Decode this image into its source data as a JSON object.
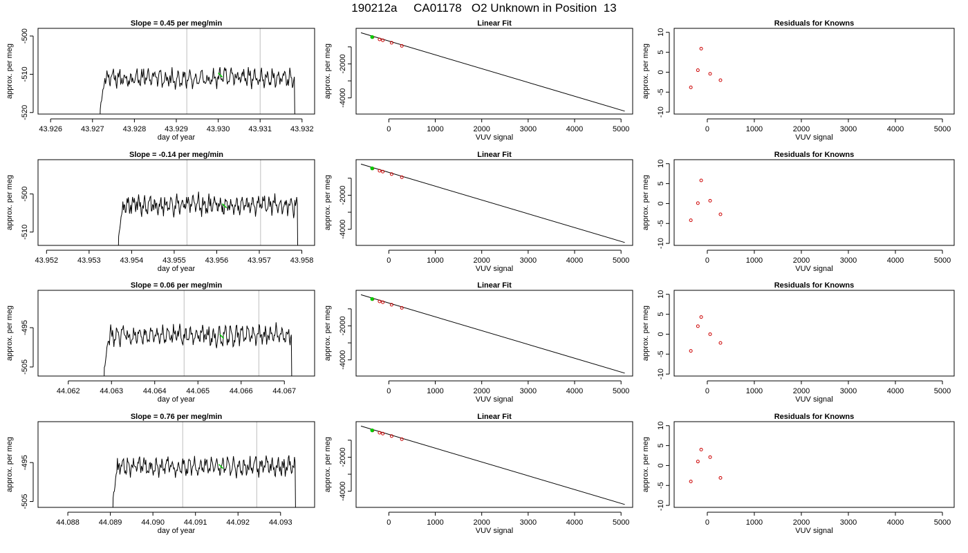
{
  "title": "190212a     CA01178   O2 Unknown in Position  13",
  "colors": {
    "trace": "#000000",
    "marker": "#00cc00",
    "residual": "#cc0000",
    "vline": "#bebebe"
  },
  "chart_data": [
    {
      "type": "line",
      "row": 1,
      "title": "Slope =  0.45  per meg/min",
      "xlabel": "day of year",
      "ylabel": "approx. per meg",
      "xlim": [
        43.9257,
        43.9323
      ],
      "ylim": [
        -520.4,
        -498.0
      ],
      "xticks": [
        43.926,
        43.927,
        43.928,
        43.929,
        43.93,
        43.931,
        43.932
      ],
      "xtick_labels": [
        "43.926",
        "43.927",
        "43.928",
        "43.929",
        "43.930",
        "43.931",
        "43.932"
      ],
      "yticks": [
        -520,
        -510,
        -500
      ],
      "ytick_labels": [
        "-520",
        "-510",
        "-500"
      ],
      "vlines": [
        43.92925,
        43.931
      ],
      "x_start": 43.92717,
      "x_end": 43.93188,
      "level": -511.0,
      "noise": 1.8,
      "marker": {
        "x": 43.93005,
        "y": -510.2
      }
    },
    {
      "type": "scatter_line",
      "row": 1,
      "title": "Linear Fit",
      "xlabel": "VUV signal",
      "ylabel": "approx. per meg",
      "xlim": [
        -705,
        5250
      ],
      "ylim": [
        -4950,
        90
      ],
      "xticks": [
        0,
        1000,
        2000,
        3000,
        4000,
        5000
      ],
      "xtick_labels": [
        "0",
        "1000",
        "2000",
        "3000",
        "4000",
        "5000"
      ],
      "yticks": [
        -4000,
        -3000,
        -2000,
        -1000
      ],
      "ytick_labels": [
        "-4000",
        "",
        "-2000",
        ""
      ],
      "fit_line": {
        "x": [
          -600,
          5080
        ],
        "y": [
          -170,
          -4780
        ]
      },
      "points": {
        "x": [
          -350,
          -200,
          -130,
          60,
          280
        ],
        "y": [
          -430,
          -560,
          -610,
          -760,
          -940
        ]
      },
      "marker": {
        "x": -360,
        "y": -420
      }
    },
    {
      "type": "scatter",
      "row": 1,
      "title": "Residuals for Knowns",
      "xlabel": "VUV signal",
      "ylabel": "approx. per meg",
      "xlim": [
        -705,
        5250
      ],
      "ylim": [
        -10.5,
        11
      ],
      "xticks": [
        0,
        1000,
        2000,
        3000,
        4000,
        5000
      ],
      "xtick_labels": [
        "0",
        "1000",
        "2000",
        "3000",
        "4000",
        "5000"
      ],
      "yticks": [
        -10,
        -5,
        0,
        5,
        10
      ],
      "ytick_labels": [
        "-10",
        "-5",
        "0",
        "5",
        "10"
      ],
      "points": {
        "x": [
          -350,
          -200,
          -130,
          60,
          280
        ],
        "y": [
          -3.8,
          0.5,
          5.9,
          -0.4,
          -2.0
        ]
      }
    },
    {
      "type": "line",
      "row": 2,
      "title": "Slope =  -0.14  per meg/min",
      "xlabel": "day of year",
      "ylabel": "approx. per meg",
      "xlim": [
        43.9518,
        43.9583
      ],
      "ylim": [
        -513.5,
        -491.0
      ],
      "xticks": [
        43.952,
        43.953,
        43.954,
        43.955,
        43.956,
        43.957,
        43.958
      ],
      "xtick_labels": [
        "43.952",
        "43.953",
        "43.954",
        "43.955",
        "43.956",
        "43.957",
        "43.958"
      ],
      "yticks": [
        -510,
        -500
      ],
      "ytick_labels": [
        "-510",
        "-500"
      ],
      "vlines": [
        43.9553,
        43.95703
      ],
      "x_start": 43.95368,
      "x_end": 43.95795,
      "level": -503.0,
      "noise": 1.8,
      "marker": {
        "x": 43.95618,
        "y": -503.1
      }
    },
    {
      "type": "scatter_line",
      "row": 2,
      "title": "Linear Fit",
      "xlabel": "VUV signal",
      "ylabel": "approx. per meg",
      "xlim": [
        -705,
        5250
      ],
      "ylim": [
        -4950,
        90
      ],
      "xticks": [
        0,
        1000,
        2000,
        3000,
        4000,
        5000
      ],
      "xtick_labels": [
        "0",
        "1000",
        "2000",
        "3000",
        "4000",
        "5000"
      ],
      "yticks": [
        -4000,
        -3000,
        -2000,
        -1000
      ],
      "ytick_labels": [
        "-4000",
        "",
        "-2000",
        ""
      ],
      "fit_line": {
        "x": [
          -600,
          5080
        ],
        "y": [
          -170,
          -4780
        ]
      },
      "points": {
        "x": [
          -350,
          -200,
          -130,
          60,
          280
        ],
        "y": [
          -430,
          -560,
          -610,
          -760,
          -940
        ]
      },
      "marker": {
        "x": -360,
        "y": -420
      }
    },
    {
      "type": "scatter",
      "row": 2,
      "title": "Residuals for Knowns",
      "xlabel": "VUV signal",
      "ylabel": "approx. per meg",
      "xlim": [
        -705,
        5250
      ],
      "ylim": [
        -10.5,
        11
      ],
      "xticks": [
        0,
        1000,
        2000,
        3000,
        4000,
        5000
      ],
      "xtick_labels": [
        "0",
        "1000",
        "2000",
        "3000",
        "4000",
        "5000"
      ],
      "yticks": [
        -10,
        -5,
        0,
        5,
        10
      ],
      "ytick_labels": [
        "-10",
        "-5",
        "0",
        "5",
        "10"
      ],
      "points": {
        "x": [
          -350,
          -200,
          -130,
          60,
          280
        ],
        "y": [
          -4.2,
          0.1,
          5.8,
          0.7,
          -2.7
        ]
      }
    },
    {
      "type": "line",
      "row": 3,
      "title": "Slope =  0.06  per meg/min",
      "xlabel": "day of year",
      "ylabel": "approx. per meg",
      "xlim": [
        44.0613,
        44.0677
      ],
      "ylim": [
        -507.3,
        -485.5
      ],
      "xticks": [
        44.062,
        44.063,
        44.064,
        44.065,
        44.066,
        44.067
      ],
      "xtick_labels": [
        "44.062",
        "44.063",
        "44.064",
        "44.065",
        "44.066",
        "44.067"
      ],
      "yticks": [
        -505,
        -495
      ],
      "ytick_labels": [
        "-505",
        "-495"
      ],
      "vlines": [
        44.06468,
        44.06641
      ],
      "x_start": 44.06282,
      "x_end": 44.06722,
      "level": -497.0,
      "noise": 1.8,
      "marker": {
        "x": 44.06555,
        "y": -497.2
      }
    },
    {
      "type": "scatter_line",
      "row": 3,
      "title": "Linear Fit",
      "xlabel": "VUV signal",
      "ylabel": "approx. per meg",
      "xlim": [
        -705,
        5250
      ],
      "ylim": [
        -4950,
        90
      ],
      "xticks": [
        0,
        1000,
        2000,
        3000,
        4000,
        5000
      ],
      "xtick_labels": [
        "0",
        "1000",
        "2000",
        "3000",
        "4000",
        "5000"
      ],
      "yticks": [
        -4000,
        -3000,
        -2000,
        -1000
      ],
      "ytick_labels": [
        "-4000",
        "",
        "-2000",
        ""
      ],
      "fit_line": {
        "x": [
          -600,
          5080
        ],
        "y": [
          -170,
          -4780
        ]
      },
      "points": {
        "x": [
          -350,
          -200,
          -130,
          60,
          280
        ],
        "y": [
          -430,
          -560,
          -610,
          -760,
          -940
        ]
      },
      "marker": {
        "x": -360,
        "y": -420
      }
    },
    {
      "type": "scatter",
      "row": 3,
      "title": "Residuals for Knowns",
      "xlabel": "VUV signal",
      "ylabel": "approx. per meg",
      "xlim": [
        -705,
        5250
      ],
      "ylim": [
        -10.5,
        11
      ],
      "xticks": [
        0,
        1000,
        2000,
        3000,
        4000,
        5000
      ],
      "xtick_labels": [
        "0",
        "1000",
        "2000",
        "3000",
        "4000",
        "5000"
      ],
      "yticks": [
        -10,
        -5,
        0,
        5,
        10
      ],
      "ytick_labels": [
        "-10",
        "-5",
        "0",
        "5",
        "10"
      ],
      "points": {
        "x": [
          -350,
          -200,
          -130,
          60,
          280
        ],
        "y": [
          -4.2,
          2.0,
          4.3,
          0.0,
          -2.2
        ]
      }
    },
    {
      "type": "line",
      "row": 4,
      "title": "Slope =  0.76  per meg/min",
      "xlabel": "day of year",
      "ylabel": "approx. per meg",
      "xlim": [
        44.0873,
        44.0938
      ],
      "ylim": [
        -506.5,
        -484.5
      ],
      "xticks": [
        44.088,
        44.089,
        44.09,
        44.091,
        44.092,
        44.093
      ],
      "xtick_labels": [
        "44.088",
        "44.089",
        "44.090",
        "44.091",
        "44.092",
        "44.093"
      ],
      "yticks": [
        -505,
        -495
      ],
      "ytick_labels": [
        "-505",
        "-495"
      ],
      "vlines": [
        44.0907,
        44.09244
      ],
      "x_start": 44.08905,
      "x_end": 44.0934,
      "level": -496.0,
      "noise": 1.8,
      "marker": {
        "x": 44.0916,
        "y": -496.0
      }
    },
    {
      "type": "scatter_line",
      "row": 4,
      "title": "Linear Fit",
      "xlabel": "VUV signal",
      "ylabel": "approx. per meg",
      "xlim": [
        -705,
        5250
      ],
      "ylim": [
        -4950,
        90
      ],
      "xticks": [
        0,
        1000,
        2000,
        3000,
        4000,
        5000
      ],
      "xtick_labels": [
        "0",
        "1000",
        "2000",
        "3000",
        "4000",
        "5000"
      ],
      "yticks": [
        -4000,
        -3000,
        -2000,
        -1000
      ],
      "ytick_labels": [
        "-4000",
        "",
        "-2000",
        ""
      ],
      "fit_line": {
        "x": [
          -600,
          5080
        ],
        "y": [
          -170,
          -4780
        ]
      },
      "points": {
        "x": [
          -350,
          -200,
          -130,
          60,
          280
        ],
        "y": [
          -430,
          -560,
          -610,
          -760,
          -940
        ]
      },
      "marker": {
        "x": -360,
        "y": -420
      }
    },
    {
      "type": "scatter",
      "row": 4,
      "title": "Residuals for Knowns",
      "xlabel": "VUV signal",
      "ylabel": "approx. per meg",
      "xlim": [
        -705,
        5250
      ],
      "ylim": [
        -10.5,
        11
      ],
      "xticks": [
        0,
        1000,
        2000,
        3000,
        4000,
        5000
      ],
      "xtick_labels": [
        "0",
        "1000",
        "2000",
        "3000",
        "4000",
        "5000"
      ],
      "yticks": [
        -10,
        -5,
        0,
        5,
        10
      ],
      "ytick_labels": [
        "-10",
        "-5",
        "0",
        "5",
        "10"
      ],
      "points": {
        "x": [
          -350,
          -200,
          -130,
          60,
          280
        ],
        "y": [
          -4.0,
          1.0,
          4.0,
          2.1,
          -3.1
        ]
      }
    }
  ]
}
